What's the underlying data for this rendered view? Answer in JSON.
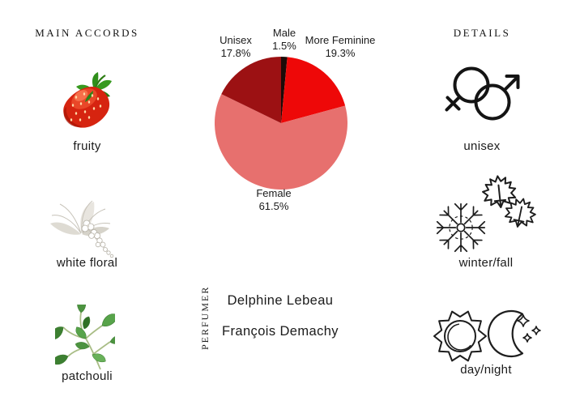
{
  "main_accords": {
    "title": "MAIN ACCORDS",
    "items": [
      {
        "label": "fruity",
        "icon": "strawberry-image"
      },
      {
        "label": "white floral",
        "icon": "white-floral-image"
      },
      {
        "label": "patchouli",
        "icon": "patchouli-image"
      }
    ]
  },
  "details": {
    "title": "DETAILS",
    "items": [
      {
        "label": "unisex",
        "icon": "unisex-gender-icon"
      },
      {
        "label": "winter/fall",
        "icon": "snowflake-and-maple-leaves-icon"
      },
      {
        "label": "day/night",
        "icon": "sun-and-moon-icon"
      }
    ]
  },
  "perfumer": {
    "title": "PERFUMER",
    "names": [
      "Delphine Lebeau",
      "François Demachy"
    ]
  },
  "chart_data": {
    "type": "pie",
    "title": "",
    "start_angle_deg": -90,
    "direction": "clockwise",
    "legend_position": "labels-around-pie",
    "slices": [
      {
        "label": "Male",
        "value": 1.5,
        "pct_label": "1.5%",
        "color": "#1c0b08"
      },
      {
        "label": "More Feminine",
        "value": 19.3,
        "pct_label": "19.3%",
        "color": "#ee0808"
      },
      {
        "label": "Female",
        "value": 61.5,
        "pct_label": "61.5%",
        "color": "#e7706e"
      },
      {
        "label": "Unisex",
        "value": 17.8,
        "pct_label": "17.8%",
        "color": "#9c1113"
      }
    ]
  }
}
